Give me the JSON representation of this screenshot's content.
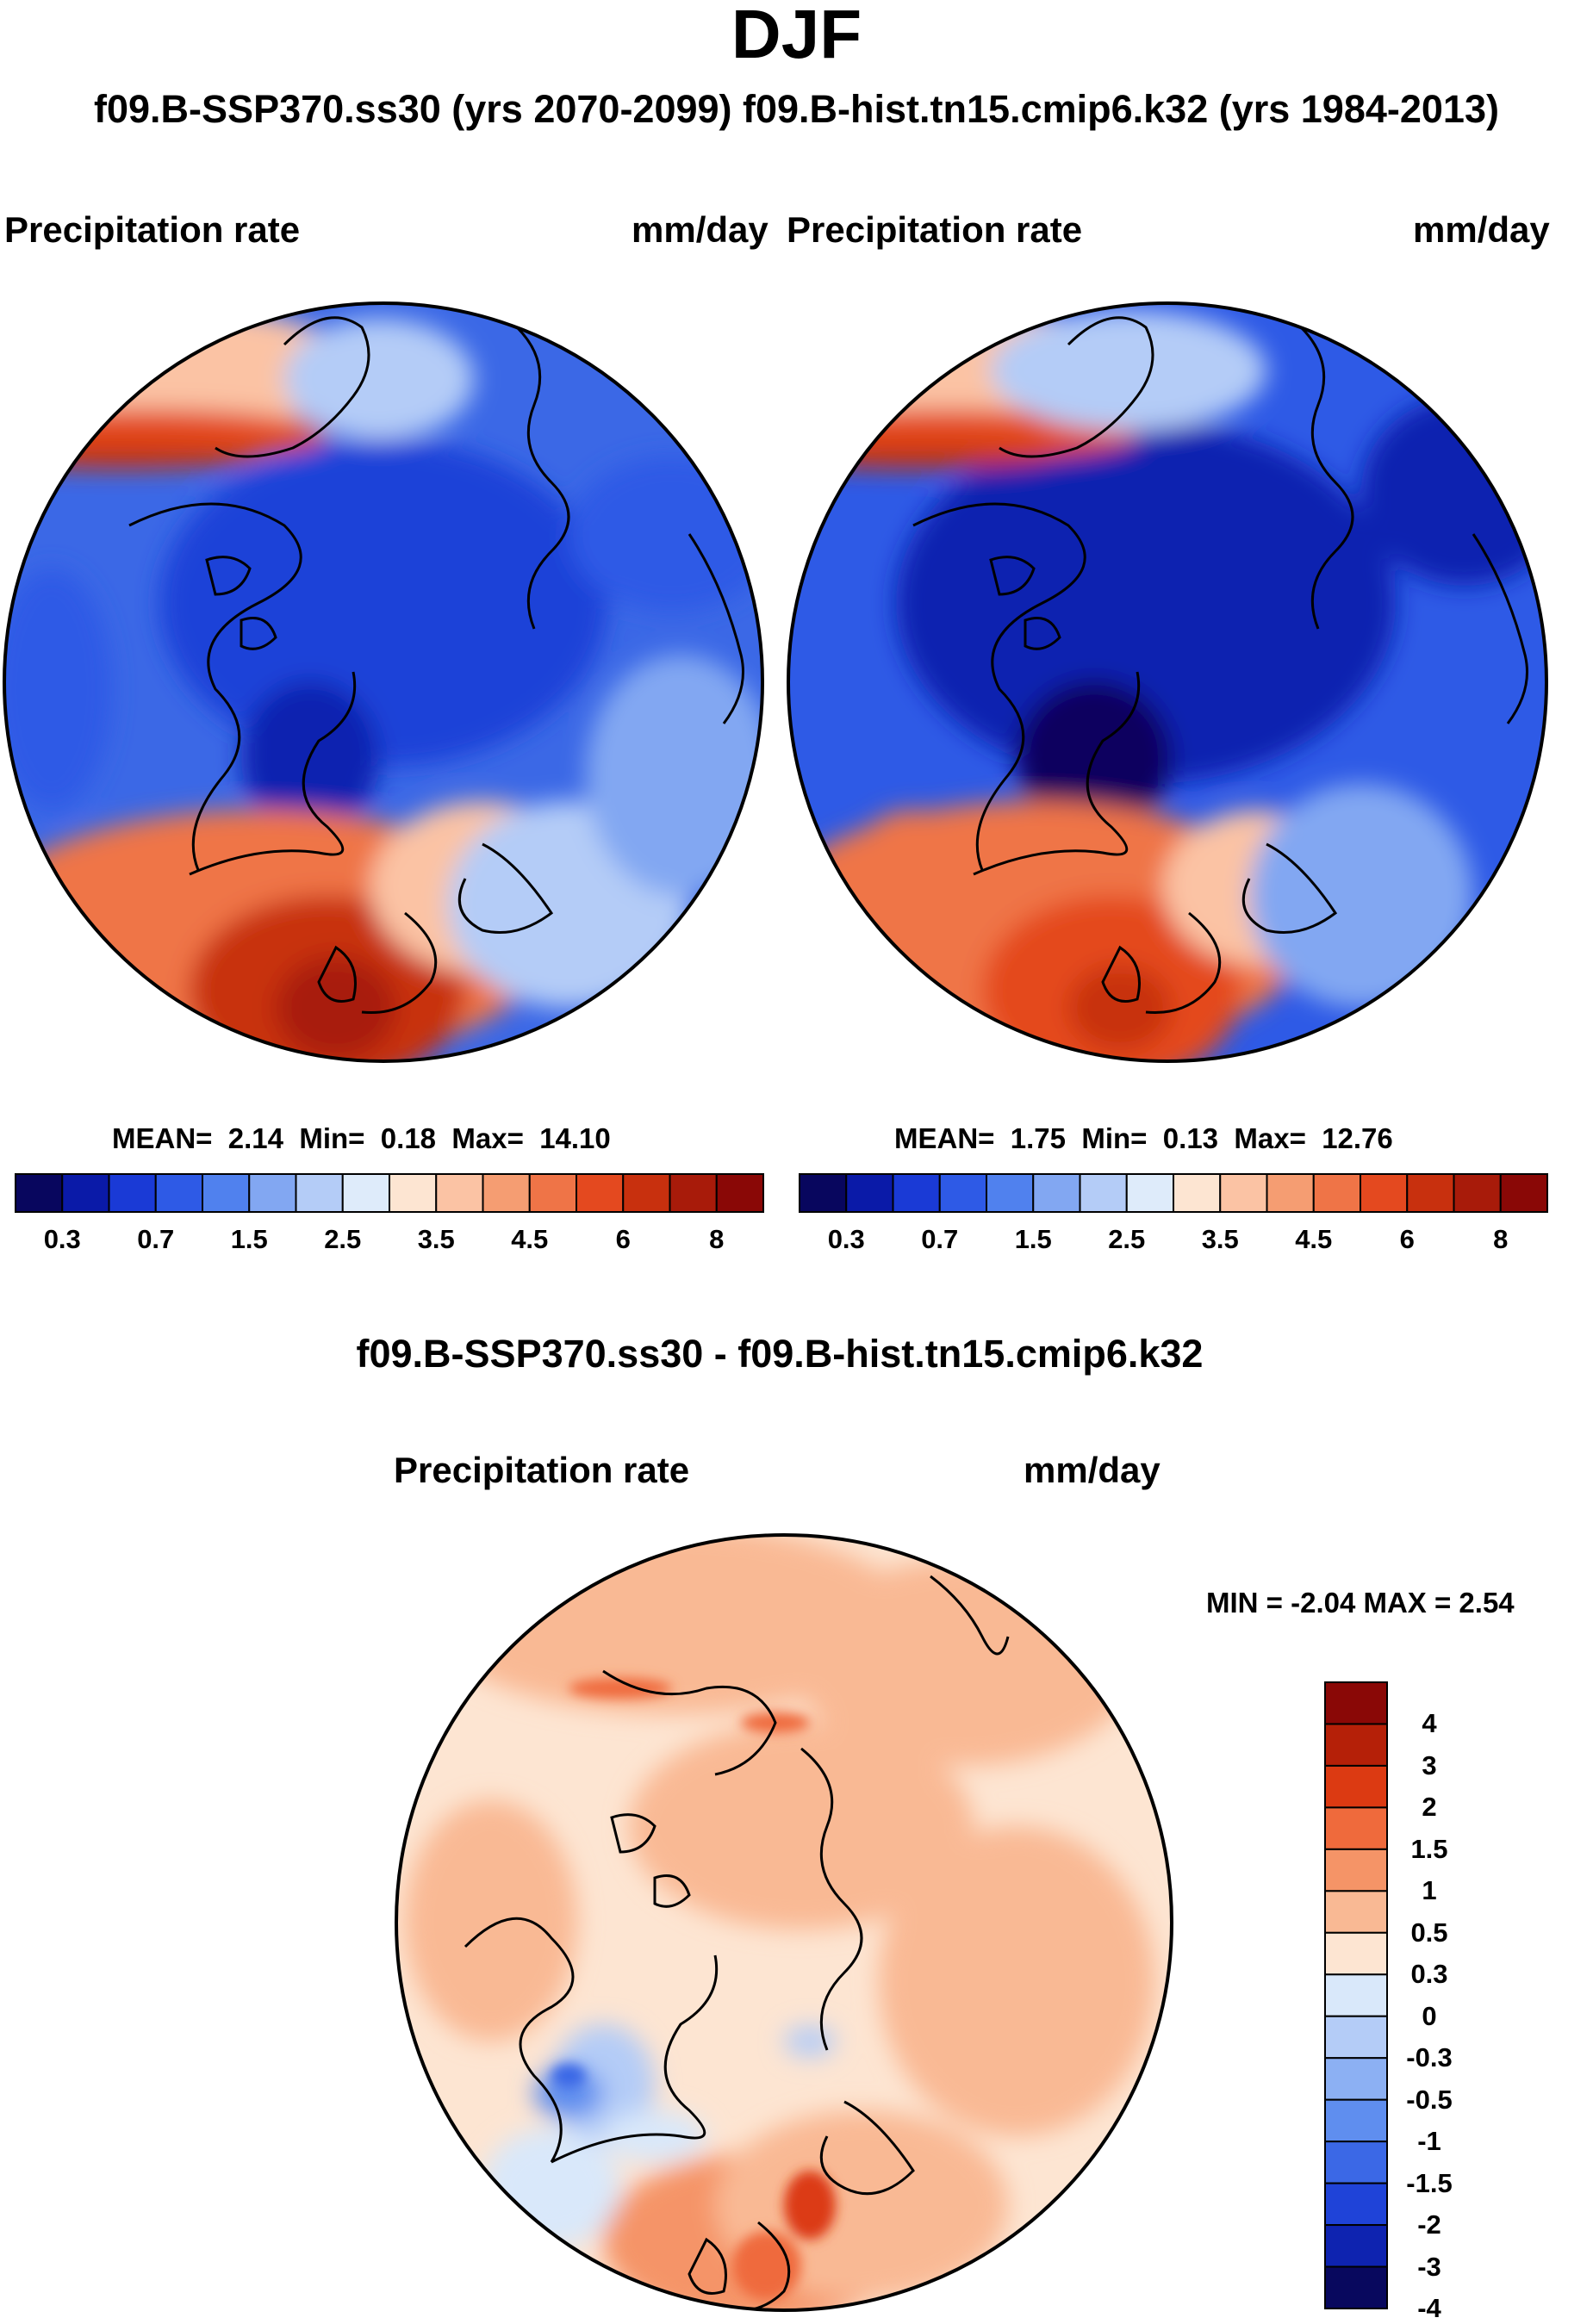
{
  "title": "DJF",
  "subtitle": "f09.B-SSP370.ss30 (yrs 2070-2099)  f09.B-hist.tn15.cmip6.k32 (yrs 1984-2013)",
  "chart_data": [
    {
      "type": "heatmap",
      "projection": "north-polar-stereographic",
      "case": "f09.B-SSP370.ss30 (yrs 2070-2099)",
      "variable": "Precipitation rate",
      "units": "mm/day",
      "mean_label": "MEAN=",
      "mean": "2.14",
      "min_label": "Min=",
      "min": "0.18",
      "max_label": "Max=",
      "max": "14.10",
      "colorbar": {
        "orientation": "horizontal",
        "levels": [
          0.2,
          0.3,
          0.5,
          0.7,
          1,
          1.5,
          2,
          2.5,
          3,
          3.5,
          4,
          4.5,
          5,
          6,
          7,
          8
        ],
        "tick_labels": [
          "0.3",
          "0.7",
          "1.5",
          "2.5",
          "3.5",
          "4.5",
          "6",
          "8"
        ]
      }
    },
    {
      "type": "heatmap",
      "projection": "north-polar-stereographic",
      "case": "f09.B-hist.tn15.cmip6.k32 (yrs 1984-2013)",
      "variable": "Precipitation rate",
      "units": "mm/day",
      "mean_label": "MEAN=",
      "mean": "1.75",
      "min_label": "Min=",
      "min": "0.13",
      "max_label": "Max=",
      "max": "12.76",
      "colorbar": {
        "orientation": "horizontal",
        "levels": [
          0.2,
          0.3,
          0.5,
          0.7,
          1,
          1.5,
          2,
          2.5,
          3,
          3.5,
          4,
          4.5,
          5,
          6,
          7,
          8
        ],
        "tick_labels": [
          "0.3",
          "0.7",
          "1.5",
          "2.5",
          "3.5",
          "4.5",
          "6",
          "8"
        ]
      }
    },
    {
      "type": "heatmap",
      "projection": "north-polar-stereographic",
      "title": "f09.B-SSP370.ss30 - f09.B-hist.tn15.cmip6.k32",
      "variable": "Precipitation rate",
      "units": "mm/day",
      "min_max_text": "MIN =  -2.04 MAX =   2.54",
      "min": -2.04,
      "max": 2.54,
      "colorbar": {
        "orientation": "vertical",
        "tick_labels": [
          "4",
          "3",
          "2",
          "1.5",
          "1",
          "0.5",
          "0.3",
          "0",
          "-0.3",
          "-0.5",
          "-1",
          "-1.5",
          "-2",
          "-3",
          "-4"
        ]
      }
    }
  ],
  "colors": {
    "seq_palette": [
      "#08065e",
      "#0a1aa8",
      "#1a3ad6",
      "#2e5ae6",
      "#5081ee",
      "#82a7f2",
      "#b4ccf7",
      "#deebfa",
      "#fde5d2",
      "#fbc3a4",
      "#f59d72",
      "#ef7447",
      "#e4491f",
      "#c8300e",
      "#a81b0a",
      "#8a0806"
    ],
    "diff_palette": [
      "#8a0806",
      "#b52008",
      "#dc3a12",
      "#ef6a3c",
      "#f59467",
      "#f9b994",
      "#fde5d2",
      "#d9e8fa",
      "#b4ccf7",
      "#8cb0f3",
      "#5f8eef",
      "#3b68e6",
      "#1f43d8",
      "#0e23b0",
      "#08085e"
    ]
  }
}
